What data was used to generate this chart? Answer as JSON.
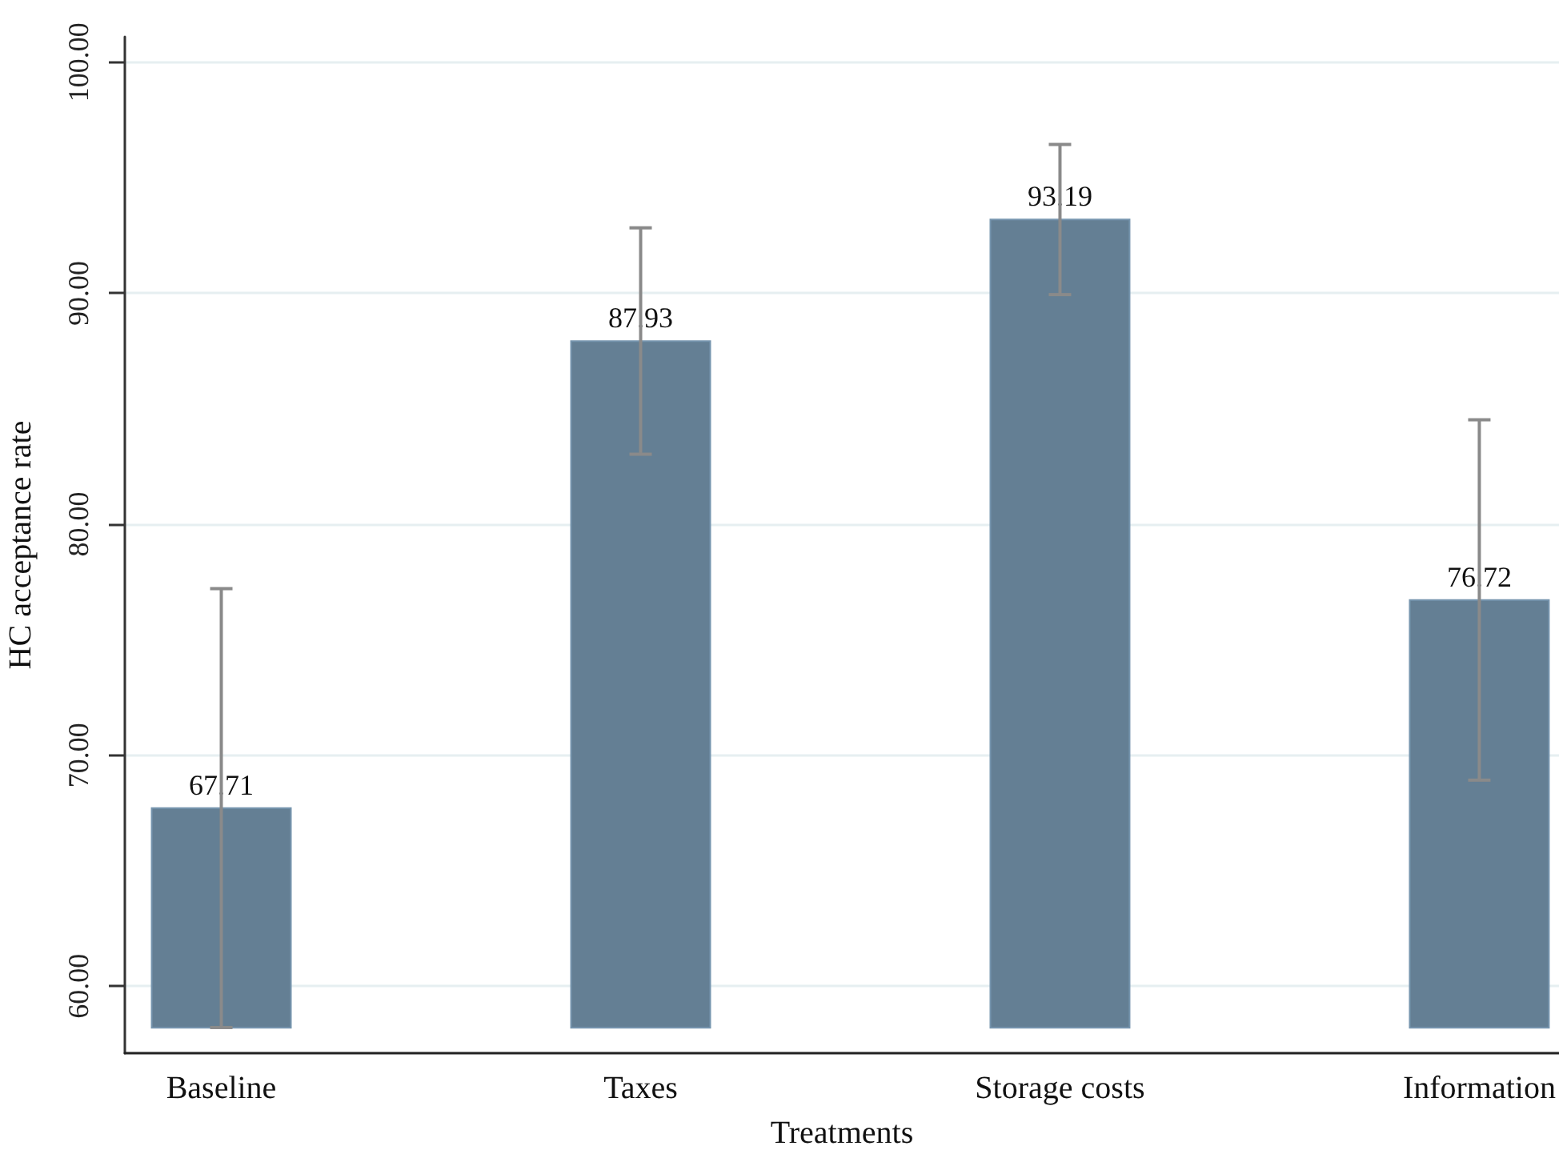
{
  "chart_data": {
    "type": "bar",
    "xlabel": "Treatments",
    "ylabel": "HC acceptance rate",
    "categories": [
      "Baseline",
      "Taxes",
      "Storage costs",
      "Information"
    ],
    "base": [
      58.2,
      58.2,
      58.2,
      58.2
    ],
    "values": [
      9.51,
      29.73,
      34.99,
      18.52
    ],
    "value_labels": [
      "67.71",
      "87.93",
      "93.19",
      "76.72"
    ],
    "errors": [
      9.5,
      4.9,
      3.25,
      7.8
    ],
    "color": "#647f94",
    "ylim": [
      57.1,
      101.1
    ],
    "yticks": [
      {
        "value": 60,
        "label": "60.00"
      },
      {
        "value": 70,
        "label": "70.00"
      },
      {
        "value": 80,
        "label": "80.00"
      },
      {
        "value": 90,
        "label": "90.00"
      },
      {
        "value": 100,
        "label": "100.00"
      }
    ],
    "grid": "y"
  }
}
